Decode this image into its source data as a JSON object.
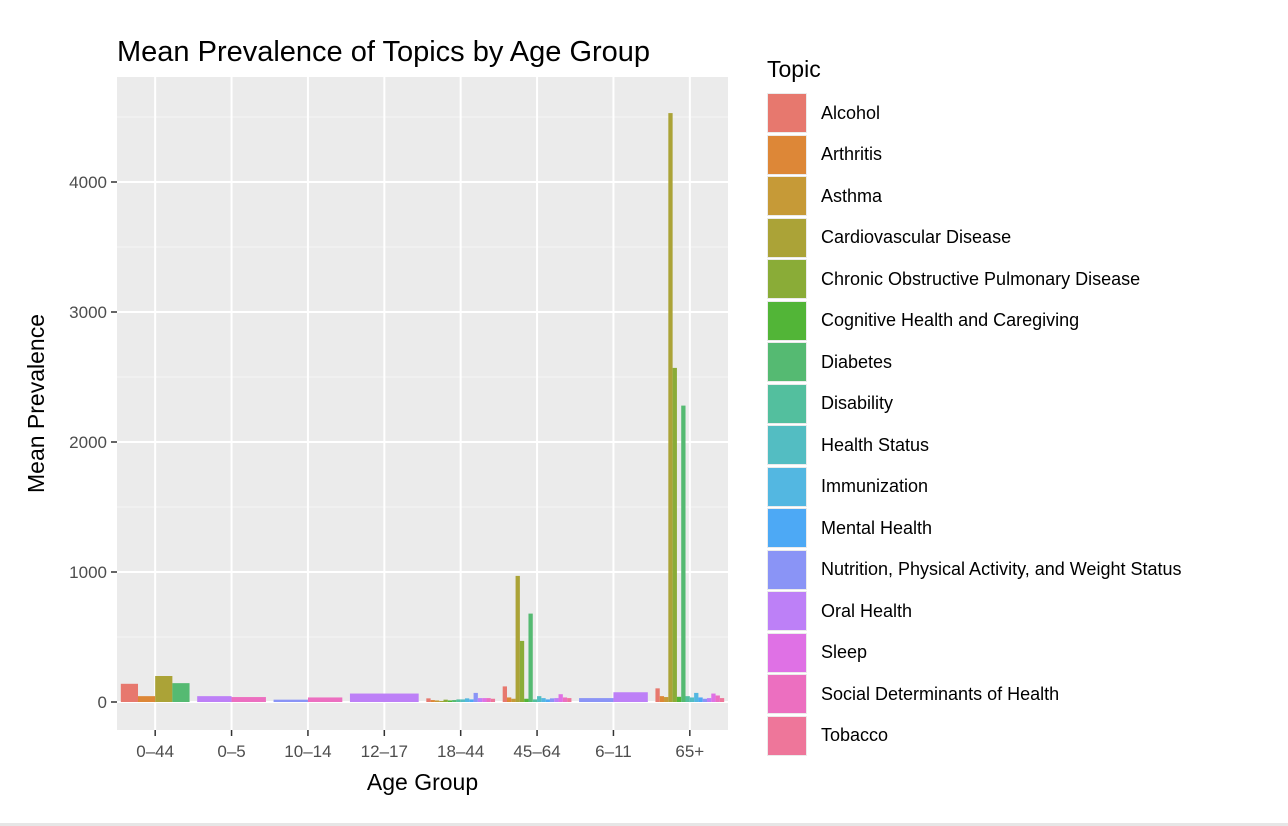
{
  "title": "Mean Prevalence of Topics by Age Group",
  "chart_data": {
    "type": "bar",
    "position": "dodge",
    "title": "Mean Prevalence of Topics by Age Group",
    "xlabel": "Age Group",
    "ylabel": "Mean Prevalence",
    "ylim": [
      -250,
      4750
    ],
    "yticks": [
      0,
      1000,
      2000,
      3000,
      4000
    ],
    "grid": true,
    "legend_position": "right",
    "legend_title": "Topic",
    "categories": [
      "0–44",
      "0–5",
      "10–14",
      "12–17",
      "18–44",
      "45–64",
      "6–11",
      "65+"
    ],
    "series": [
      {
        "name": "Alcohol",
        "color": "#E7786E",
        "values": [
          140,
          null,
          null,
          null,
          28,
          120,
          null,
          105
        ]
      },
      {
        "name": "Arthritis",
        "color": "#DD8737",
        "values": [
          45,
          null,
          null,
          null,
          15,
          35,
          null,
          45
        ]
      },
      {
        "name": "Asthma",
        "color": "#C69A37",
        "values": [
          null,
          null,
          null,
          null,
          12,
          25,
          null,
          38
        ]
      },
      {
        "name": "Cardiovascular Disease",
        "color": "#ABA337",
        "values": [
          200,
          null,
          null,
          null,
          8,
          970,
          null,
          4530
        ]
      },
      {
        "name": "Chronic Obstructive Pulmonary Disease",
        "color": "#8AAC37",
        "values": [
          null,
          null,
          null,
          null,
          18,
          470,
          null,
          2570
        ]
      },
      {
        "name": "Cognitive Health and Caregiving",
        "color": "#52B537",
        "values": [
          null,
          null,
          null,
          null,
          12,
          25,
          null,
          40
        ]
      },
      {
        "name": "Diabetes",
        "color": "#55BA72",
        "values": [
          145,
          null,
          null,
          null,
          15,
          680,
          null,
          2280
        ]
      },
      {
        "name": "Disability",
        "color": "#53BF9E",
        "values": [
          null,
          null,
          null,
          null,
          20,
          20,
          null,
          45
        ]
      },
      {
        "name": "Health Status",
        "color": "#53BDC2",
        "values": [
          null,
          null,
          null,
          null,
          20,
          45,
          null,
          35
        ]
      },
      {
        "name": "Immunization",
        "color": "#53B7E1",
        "values": [
          null,
          null,
          null,
          null,
          28,
          30,
          null,
          70
        ]
      },
      {
        "name": "Mental Health",
        "color": "#4DA9F5",
        "values": [
          null,
          null,
          null,
          null,
          20,
          20,
          null,
          35
        ]
      },
      {
        "name": "Nutrition, Physical Activity, and Weight Status",
        "color": "#8A94F6",
        "values": [
          null,
          null,
          18,
          null,
          70,
          28,
          30,
          25
        ]
      },
      {
        "name": "Oral Health",
        "color": "#BD80F7",
        "values": [
          null,
          45,
          null,
          65,
          30,
          30,
          75,
          30
        ]
      },
      {
        "name": "Sleep",
        "color": "#DF71E5",
        "values": [
          null,
          null,
          null,
          null,
          30,
          60,
          null,
          65
        ]
      },
      {
        "name": "Social Determinants of Health",
        "color": "#EC6FC0",
        "values": [
          null,
          38,
          35,
          null,
          30,
          35,
          null,
          50
        ]
      },
      {
        "name": "Tobacco",
        "color": "#EE769A",
        "values": [
          null,
          null,
          null,
          null,
          25,
          30,
          null,
          30
        ]
      }
    ]
  }
}
